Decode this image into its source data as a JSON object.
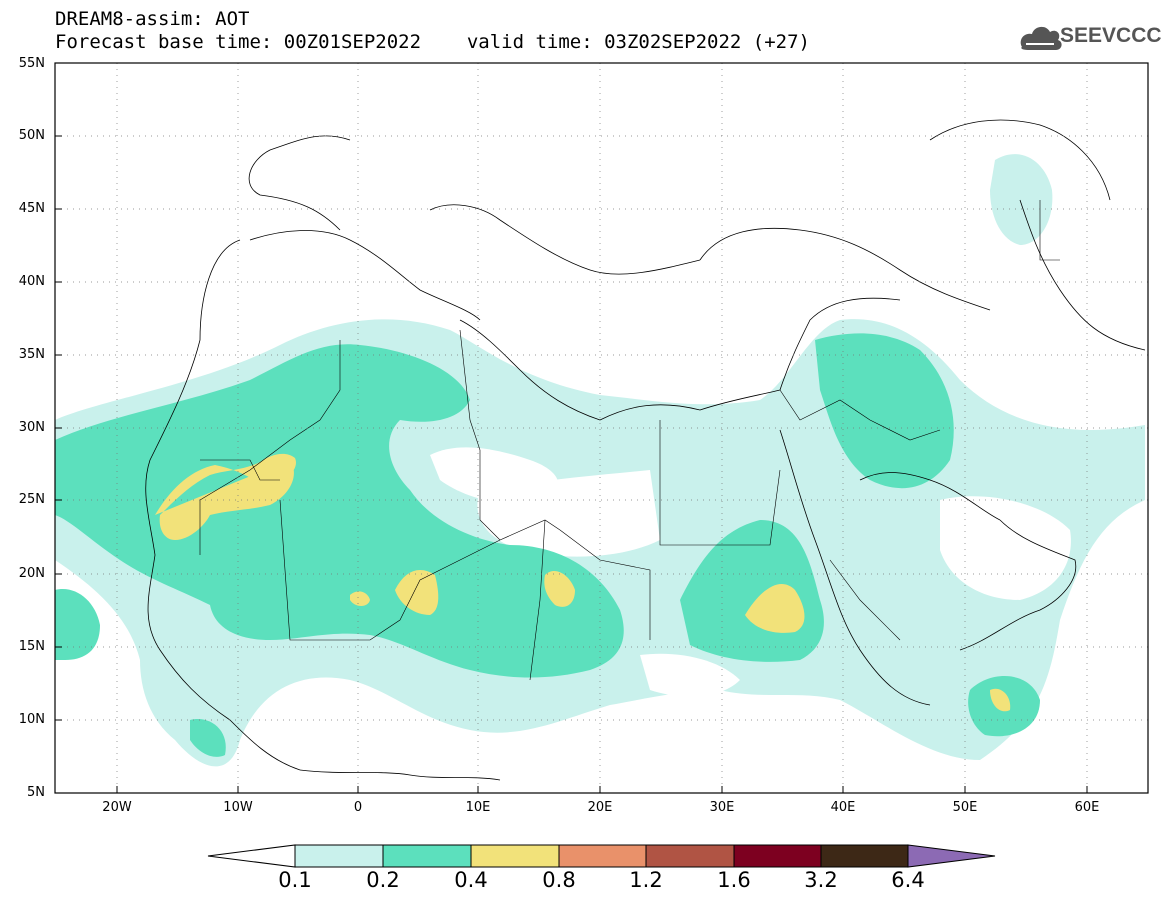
{
  "header": {
    "title": "DREAM8-assim: AOT",
    "base_label": "Forecast base time: 00Z01SEP2022",
    "valid_label": "valid time: 03Z02SEP2022 (+27)"
  },
  "logo": {
    "text": "SEEVCCC"
  },
  "axes": {
    "lat_labels": [
      "55N",
      "50N",
      "45N",
      "40N",
      "35N",
      "30N",
      "25N",
      "20N",
      "15N",
      "10N",
      "5N"
    ],
    "lon_labels": [
      "20W",
      "10W",
      "0",
      "10E",
      "20E",
      "30E",
      "40E",
      "50E",
      "60E"
    ],
    "lon_range": [
      -25,
      65
    ],
    "lat_range": [
      5,
      55
    ],
    "grid": "dotted"
  },
  "colorbar": {
    "levels": [
      "0.1",
      "0.2",
      "0.4",
      "0.8",
      "1.2",
      "1.6",
      "3.2",
      "6.4"
    ],
    "colors": [
      "#c9f1ec",
      "#5ce0bd",
      "#f2e27a",
      "#e9916a",
      "#b05444",
      "#7d0020",
      "#3d2816",
      "#8c6ab4"
    ],
    "under_color": "#ffffff"
  },
  "fields": {
    "coast_color": "#000000",
    "low_color": "#c9f1ec",
    "mid_color": "#5ce0bd",
    "high_color": "#f2e27a"
  }
}
